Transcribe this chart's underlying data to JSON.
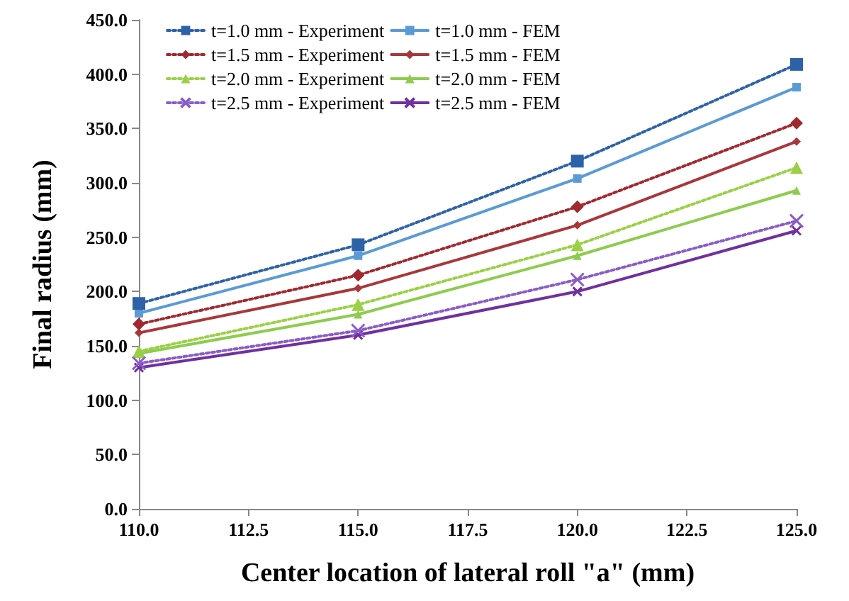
{
  "chart_data": {
    "type": "line",
    "xlabel": "Center location of lateral roll \"a\" (mm)",
    "ylabel": "Final radius (mm)",
    "x": [
      110,
      115,
      120,
      125
    ],
    "xlim": [
      110,
      125
    ],
    "xticks": [
      {
        "value": 110,
        "label": "110.0"
      },
      {
        "value": 112.5,
        "label": "112.5"
      },
      {
        "value": 115,
        "label": "115.0"
      },
      {
        "value": 117.5,
        "label": "117.5"
      },
      {
        "value": 120,
        "label": "120.0"
      },
      {
        "value": 122.5,
        "label": "122.5"
      },
      {
        "value": 125,
        "label": "125.0"
      }
    ],
    "ylim": [
      0,
      450
    ],
    "yticks": [
      {
        "value": 0,
        "label": "0.0"
      },
      {
        "value": 50,
        "label": "50.0"
      },
      {
        "value": 100,
        "label": "100.0"
      },
      {
        "value": 150,
        "label": "150.0"
      },
      {
        "value": 200,
        "label": "200.0"
      },
      {
        "value": 250,
        "label": "250.0"
      },
      {
        "value": 300,
        "label": "300.0"
      },
      {
        "value": 350,
        "label": "350.0"
      },
      {
        "value": 400,
        "label": "400.0"
      },
      {
        "value": 450,
        "label": "450.0"
      }
    ],
    "grid": false,
    "legend": "top left",
    "series": [
      {
        "name": "t=1.0 mm - Experiment",
        "color": "#2e62a8",
        "marker": "square",
        "line_style": "dotted",
        "values": [
          189,
          243,
          320,
          409
        ]
      },
      {
        "name": "t=1.0 mm - FEM",
        "color": "#5b9bd5",
        "marker": "square",
        "line_style": "solid",
        "values": [
          180,
          233,
          304,
          388
        ]
      },
      {
        "name": "t=1.5 mm - Experiment",
        "color": "#a0292f",
        "marker": "diamond",
        "line_style": "dotted",
        "values": [
          170,
          215,
          278,
          355
        ]
      },
      {
        "name": "t=1.5 mm - FEM",
        "color": "#a9373a",
        "marker": "diamond",
        "line_style": "solid",
        "values": [
          162,
          203,
          261,
          338
        ]
      },
      {
        "name": "t=2.0 mm - Experiment",
        "color": "#9bd046",
        "marker": "triangle",
        "line_style": "dotted",
        "values": [
          145,
          188,
          243,
          314
        ]
      },
      {
        "name": "t=2.0 mm - FEM",
        "color": "#8dcc4e",
        "marker": "triangle",
        "line_style": "solid",
        "values": [
          143,
          179,
          233,
          293
        ]
      },
      {
        "name": "t=2.5 mm - Experiment",
        "color": "#8a5cc8",
        "marker": "cross",
        "line_style": "dotted",
        "values": [
          134,
          164,
          211,
          265
        ]
      },
      {
        "name": "t=2.5 mm - FEM",
        "color": "#7030a0",
        "marker": "cross",
        "line_style": "solid",
        "values": [
          130,
          160,
          200,
          256
        ]
      }
    ]
  }
}
